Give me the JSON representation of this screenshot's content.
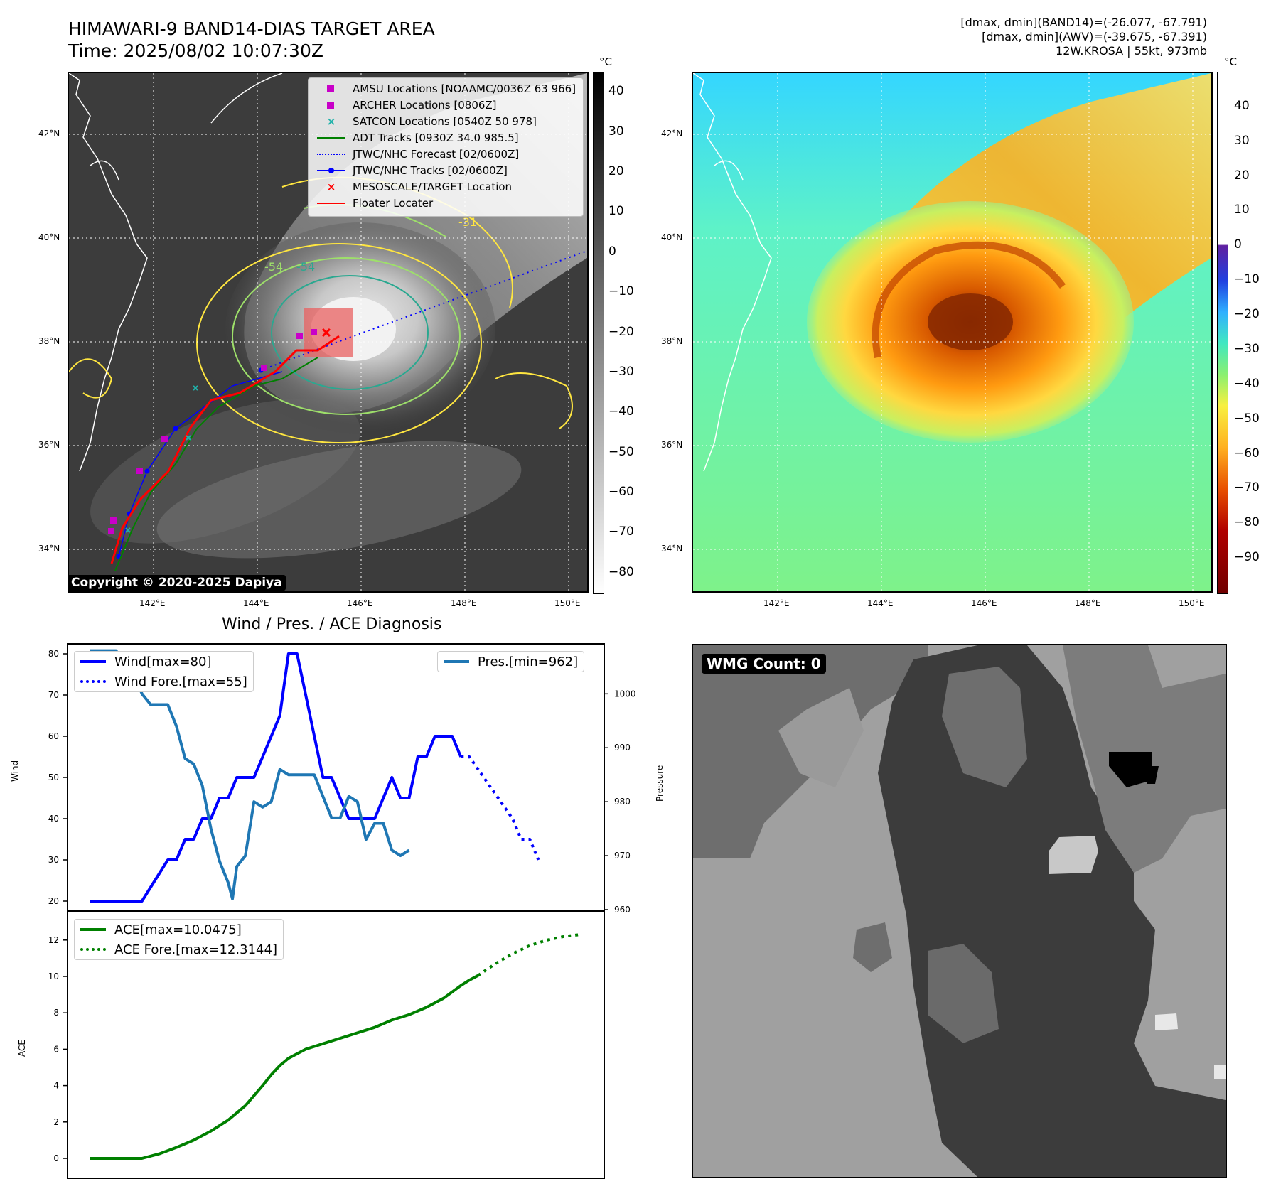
{
  "satellite": {
    "title_line1": "HIMAWARI-9 BAND14-DIAS TARGET AREA",
    "title_line2": "Time: 2025/08/02 10:07:30Z",
    "info_line1": "[dmax, dmin](BAND14)=(-26.077, -67.791)",
    "info_line2": "[dmax, dmin](AWV)=(-39.675, -67.391)",
    "info_line3": "12W.KROSA | 55kt, 973mb",
    "colorbar_unit": "°C",
    "lat_labels": [
      "42°N",
      "40°N",
      "38°N",
      "36°N",
      "34°N"
    ],
    "lon_labels": [
      "142°E",
      "144°E",
      "146°E",
      "148°E",
      "150°E"
    ],
    "left_colorbar_ticks": [
      "40",
      "30",
      "20",
      "10",
      "0",
      "−10",
      "−20",
      "−30",
      "−40",
      "−50",
      "−60",
      "−70",
      "−80"
    ],
    "right_colorbar_ticks": [
      "40",
      "30",
      "20",
      "10",
      "0",
      "−10",
      "−20",
      "−30",
      "−40",
      "−50",
      "−60",
      "−70",
      "−80",
      "−90"
    ],
    "copyright": "Copyright © 2020-2025 Dapiya",
    "contour_labels": [
      "-54",
      "-54",
      "-31"
    ],
    "legend": [
      {
        "label": "AMSU Locations [NOAAMC/0036Z 63 966]",
        "color": "#c800c8",
        "marker": "square"
      },
      {
        "label": "ARCHER Locations [0806Z]",
        "color": "#c800c8",
        "marker": "square"
      },
      {
        "label": "SATCON Locations [0540Z 50 978]",
        "color": "#20b2aa",
        "marker": "x"
      },
      {
        "label": "ADT Tracks [0930Z 34.0 985.5]",
        "color": "#008000",
        "marker": "line"
      },
      {
        "label": "JTWC/NHC Forecast [02/0600Z]",
        "color": "#0000ff",
        "marker": "dotted"
      },
      {
        "label": "JTWC/NHC Tracks [02/0600Z]",
        "color": "#0000ff",
        "marker": "linedot"
      },
      {
        "label": "MESOSCALE/TARGET Location",
        "color": "#ff0000",
        "marker": "x"
      },
      {
        "label": "Floater Locater",
        "color": "#ff0000",
        "marker": "line"
      }
    ]
  },
  "diagnosis": {
    "title": "Wind / Pres. / ACE Diagnosis",
    "wind_label": "Wind",
    "pressure_label": "Pressure",
    "ace_label": "ACE",
    "legend_wind": "Wind[max=80]",
    "legend_wind_fore": "Wind Fore.[max=55]",
    "legend_pres": "Pres.[min=962]",
    "legend_ace": "ACE[max=10.0475]",
    "legend_ace_fore": "ACE Fore.[max=12.3144]",
    "wmg_count": "WMG Count: 0"
  },
  "chart_data": [
    {
      "type": "line",
      "title": "Wind / Pres. / ACE Diagnosis",
      "ylabel": "Wind",
      "ylim": [
        18,
        82
      ],
      "x": [
        0,
        1,
        2,
        3,
        4,
        5,
        6,
        7,
        8,
        9,
        10,
        11,
        12,
        13,
        14,
        15,
        16,
        17,
        18,
        19,
        20,
        21,
        22,
        23,
        24,
        25,
        26,
        27,
        28,
        29,
        30,
        31,
        32,
        33,
        34,
        35,
        36,
        37,
        38,
        39,
        40,
        41,
        42,
        43,
        44,
        45,
        46,
        47,
        48,
        49,
        50,
        51,
        52,
        53,
        54,
        55,
        56,
        57,
        58,
        59,
        60,
        61,
        62,
        63,
        64,
        65,
        66,
        67,
        68,
        69,
        70,
        71,
        72,
        73,
        74,
        75,
        76,
        77,
        78,
        79,
        80,
        81,
        82,
        83,
        84,
        85,
        86,
        87,
        88,
        89,
        90,
        91,
        92,
        93,
        94,
        95,
        96,
        97,
        98,
        99,
        100,
        101,
        102,
        103,
        104,
        105,
        106,
        107,
        108,
        109,
        110,
        111,
        112,
        113,
        114,
        115,
        116,
        117,
        118,
        119,
        120,
        121,
        122,
        123,
        124,
        125,
        126,
        127,
        128,
        129,
        130,
        131,
        132,
        133,
        134,
        135,
        136,
        137,
        138,
        139,
        140,
        141,
        142,
        143,
        144,
        145,
        146,
        147,
        148,
        149,
        150,
        151,
        152,
        153,
        154,
        155,
        156,
        157,
        158,
        159,
        160,
        161,
        162,
        163,
        164,
        165,
        166,
        167,
        168,
        169,
        170,
        171,
        172,
        173,
        174,
        175,
        176,
        177,
        178,
        179,
        180,
        181,
        182,
        183,
        184,
        185,
        186,
        187,
        188,
        189,
        190,
        191,
        192,
        193,
        194,
        195,
        196,
        197,
        198,
        199,
        200,
        201,
        202,
        203,
        204,
        205,
        206,
        207,
        208,
        209,
        210,
        211,
        212,
        213,
        214,
        215,
        216,
        217,
        218,
        219,
        220,
        221,
        222,
        223,
        224,
        225,
        226,
        227,
        228,
        229,
        230,
        231,
        232,
        233,
        234,
        235,
        236,
        237,
        238,
        239,
        240,
        241,
        242,
        243,
        244,
        245,
        246,
        247,
        248,
        249,
        250,
        251,
        252,
        253,
        254,
        255,
        256,
        257,
        258,
        259,
        260,
        261,
        262,
        263,
        264,
        265,
        266,
        267,
        268,
        269,
        270,
        271,
        272,
        273,
        274,
        275,
        276,
        277,
        278,
        279,
        280,
        281,
        282,
        283,
        284,
        285,
        286,
        287,
        288,
        289,
        290,
        291,
        292,
        293,
        294,
        295,
        296,
        297,
        298,
        299,
        300
      ],
      "series": [
        {
          "name": "Wind[max=80]",
          "style": "solid",
          "color": "#0000ff",
          "points": [
            [
              0,
              20
            ],
            [
              6,
              20
            ],
            [
              9,
              30
            ],
            [
              10,
              30
            ],
            [
              11,
              35
            ],
            [
              12,
              35
            ],
            [
              13,
              40
            ],
            [
              14,
              40
            ],
            [
              15,
              45
            ],
            [
              16,
              45
            ],
            [
              17,
              50
            ],
            [
              19,
              50
            ],
            [
              20,
              55
            ],
            [
              21,
              60
            ],
            [
              22,
              65
            ],
            [
              23,
              80
            ],
            [
              24,
              80
            ],
            [
              25,
              70
            ],
            [
              26,
              60
            ],
            [
              27,
              50
            ],
            [
              28,
              50
            ],
            [
              29,
              45
            ],
            [
              30,
              40
            ],
            [
              33,
              40
            ],
            [
              34,
              45
            ],
            [
              35,
              50
            ],
            [
              36,
              45
            ],
            [
              37,
              45
            ],
            [
              38,
              55
            ],
            [
              39,
              55
            ],
            [
              40,
              60
            ],
            [
              42,
              60
            ],
            [
              43,
              55
            ]
          ]
        },
        {
          "name": "Wind Fore.[max=55]",
          "style": "dotted",
          "color": "#0000ff",
          "points": [
            [
              43,
              55
            ],
            [
              44,
              55
            ],
            [
              45,
              52
            ],
            [
              46,
              49
            ],
            [
              47,
              46
            ],
            [
              48,
              43
            ],
            [
              49,
              40
            ],
            [
              50,
              35
            ],
            [
              51,
              35
            ],
            [
              52,
              30
            ]
          ]
        }
      ],
      "y2label": "Pressure",
      "y2lim": [
        960,
        1009
      ],
      "series2": [
        {
          "name": "Pres.[min=962]",
          "style": "solid",
          "color": "#1f77b4",
          "points": [
            [
              0,
              1008
            ],
            [
              3,
              1008
            ],
            [
              4,
              1005
            ],
            [
              5,
              1004
            ],
            [
              6,
              1000
            ],
            [
              7,
              998
            ],
            [
              9,
              998
            ],
            [
              10,
              994
            ],
            [
              11,
              988
            ],
            [
              12,
              987
            ],
            [
              13,
              983
            ],
            [
              14,
              975
            ],
            [
              15,
              969
            ],
            [
              16,
              965
            ],
            [
              16.5,
              962
            ],
            [
              17,
              968
            ],
            [
              18,
              970
            ],
            [
              19,
              980
            ],
            [
              20,
              979
            ],
            [
              21,
              980
            ],
            [
              22,
              986
            ],
            [
              23,
              985
            ],
            [
              26,
              985
            ],
            [
              27,
              981
            ],
            [
              28,
              977
            ],
            [
              29,
              977
            ],
            [
              30,
              981
            ],
            [
              31,
              980
            ],
            [
              32,
              973
            ],
            [
              33,
              976
            ],
            [
              34,
              976
            ],
            [
              35,
              971
            ],
            [
              36,
              970
            ],
            [
              37,
              971
            ]
          ]
        }
      ]
    },
    {
      "type": "line",
      "ylabel": "ACE",
      "ylim": [
        -0.5,
        12.8
      ],
      "series": [
        {
          "name": "ACE[max=10.0475]",
          "style": "solid",
          "color": "#008000",
          "points": [
            [
              0,
              0
            ],
            [
              6,
              0
            ],
            [
              8,
              0.25
            ],
            [
              10,
              0.6
            ],
            [
              12,
              1.0
            ],
            [
              14,
              1.5
            ],
            [
              16,
              2.1
            ],
            [
              18,
              2.9
            ],
            [
              20,
              4.0
            ],
            [
              21,
              4.6
            ],
            [
              22,
              5.1
            ],
            [
              23,
              5.5
            ],
            [
              25,
              6.0
            ],
            [
              27,
              6.3
            ],
            [
              29,
              6.6
            ],
            [
              31,
              6.9
            ],
            [
              33,
              7.2
            ],
            [
              35,
              7.6
            ],
            [
              37,
              7.9
            ],
            [
              39,
              8.3
            ],
            [
              41,
              8.8
            ],
            [
              43,
              9.5
            ],
            [
              44,
              9.8
            ],
            [
              45,
              10.05
            ]
          ]
        },
        {
          "name": "ACE Fore.[max=12.3144]",
          "style": "dotted",
          "color": "#008000",
          "points": [
            [
              45,
              10.05
            ],
            [
              47,
              10.7
            ],
            [
              49,
              11.25
            ],
            [
              51,
              11.7
            ],
            [
              53,
              12.0
            ],
            [
              55,
              12.2
            ],
            [
              57,
              12.31
            ]
          ]
        }
      ]
    }
  ]
}
